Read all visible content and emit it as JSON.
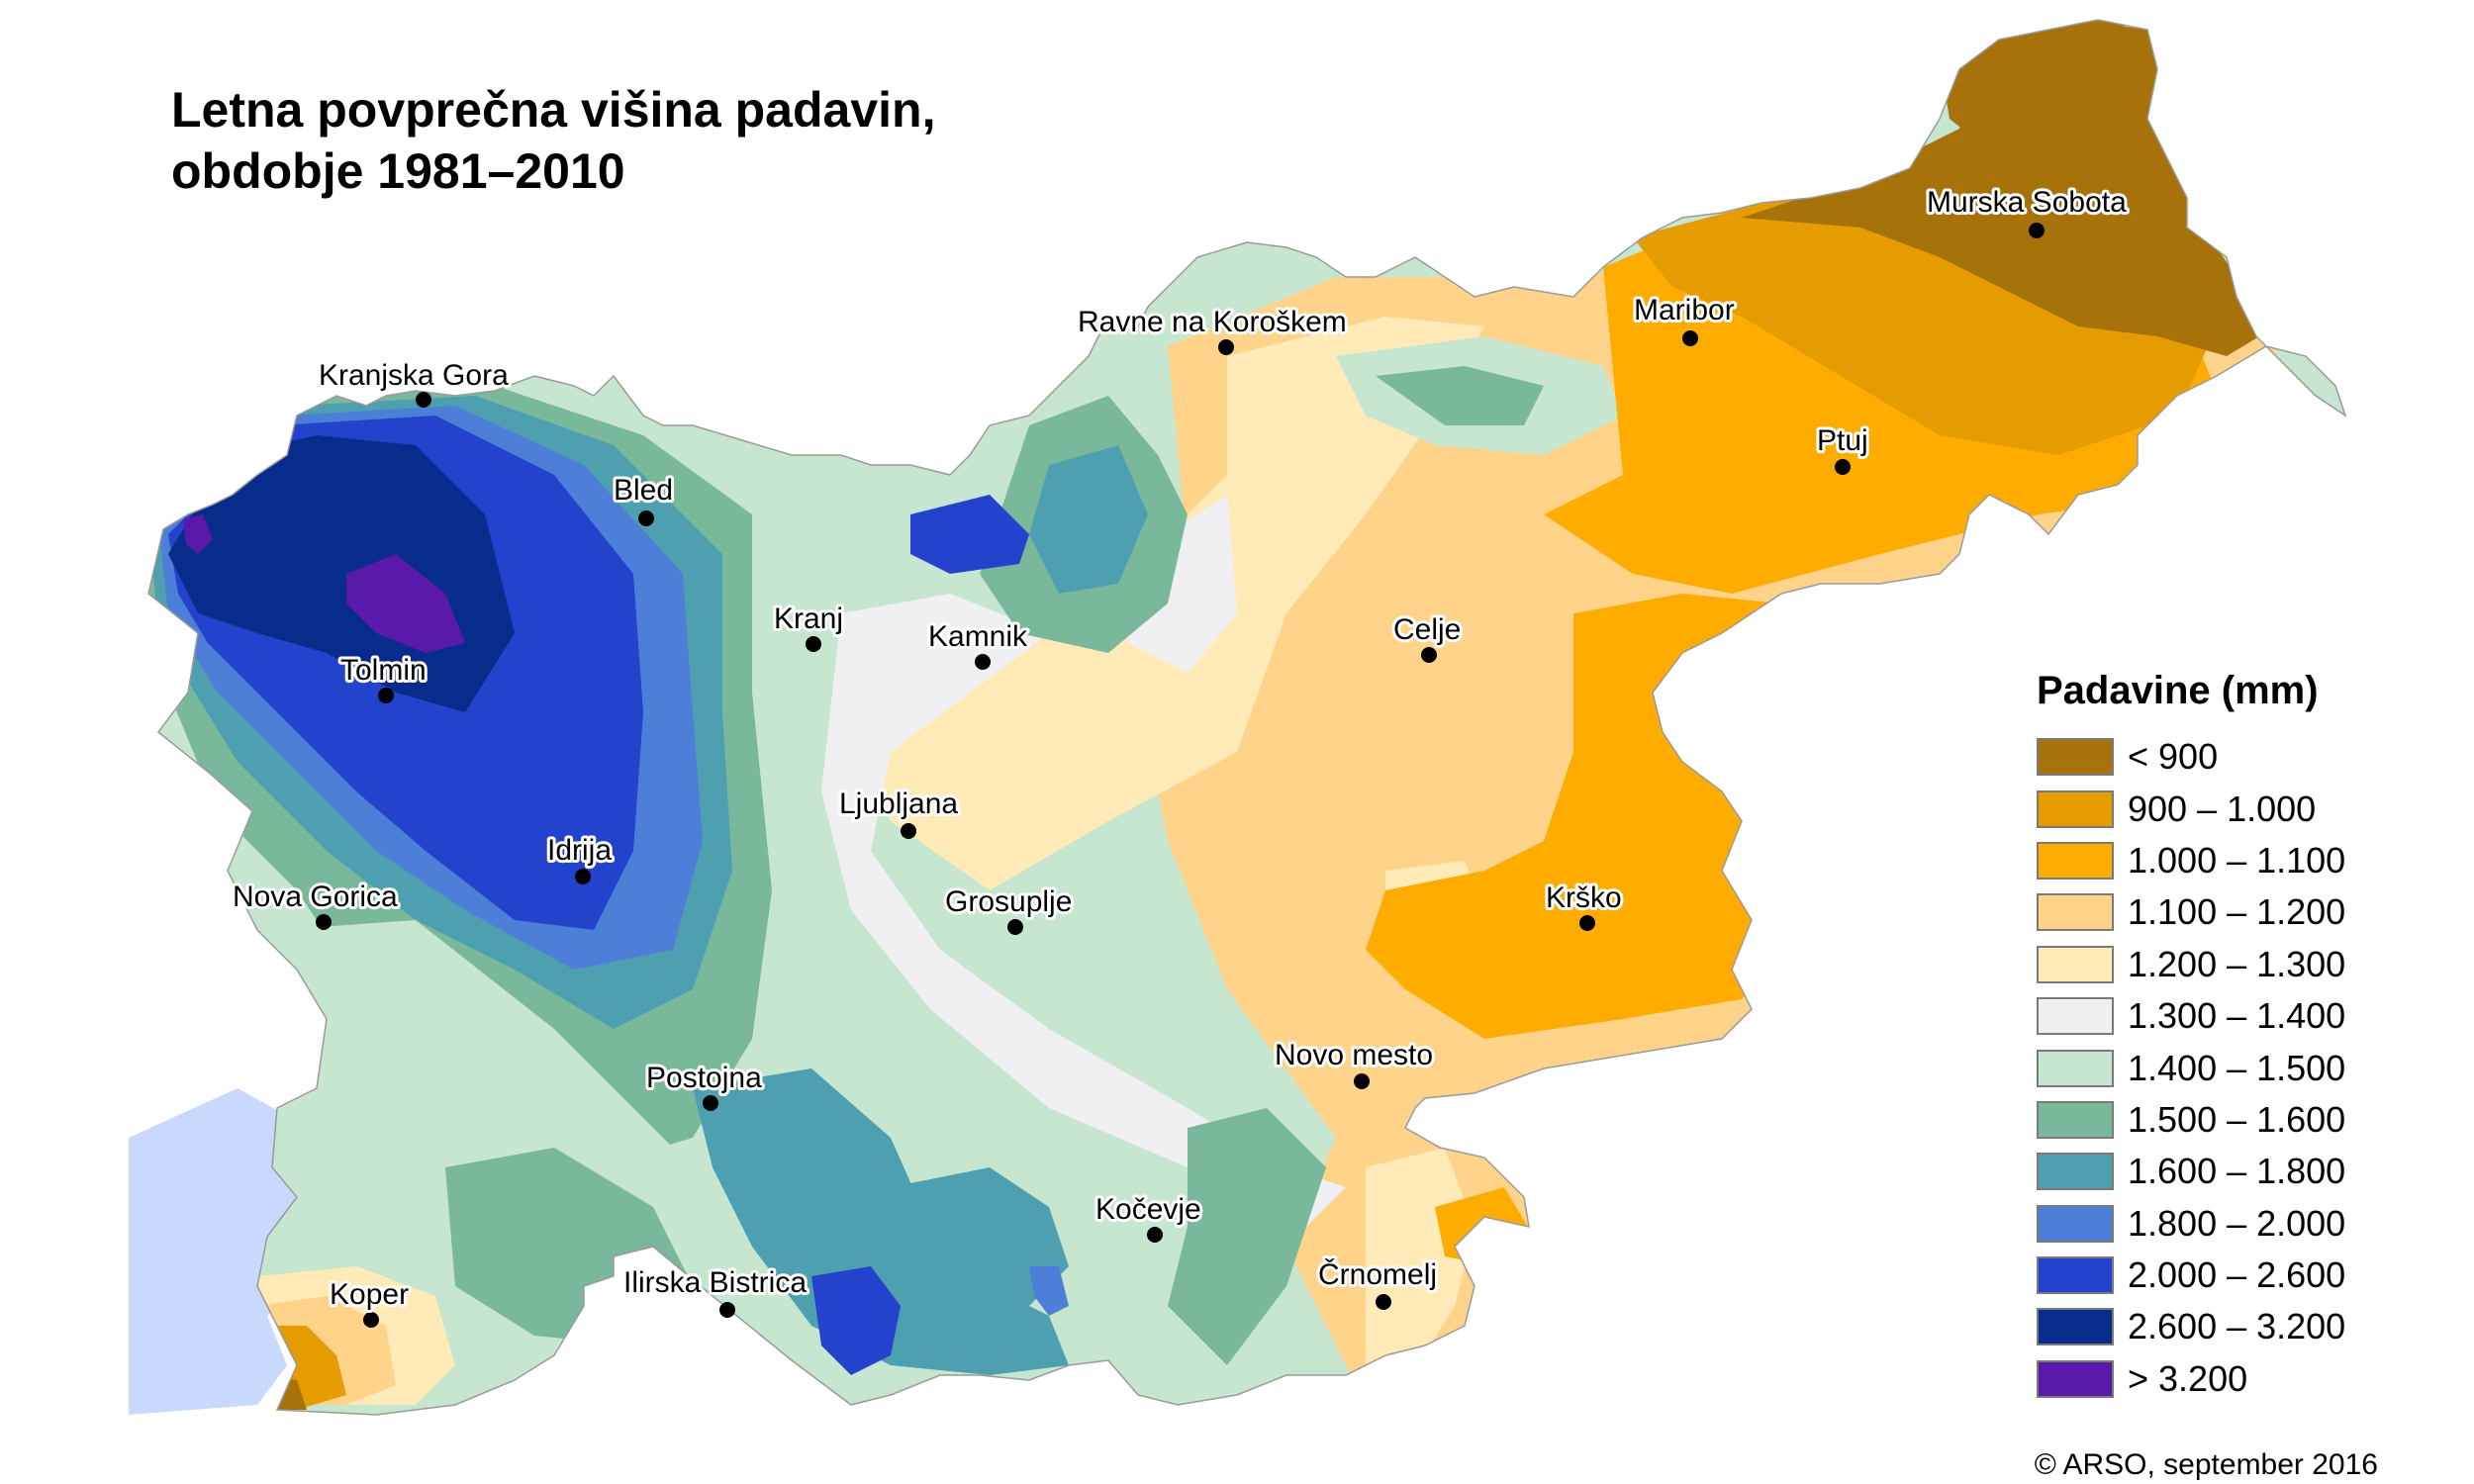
{
  "title": {
    "line1": "Letna povprečna višina padavin,",
    "line2": "obdobje 1981–2010"
  },
  "legend": {
    "title": "Padavine (mm)",
    "classes": [
      {
        "label": "< 900",
        "color": "#a8720a"
      },
      {
        "label": "900 – 1.000",
        "color": "#e59c00"
      },
      {
        "label": "1.000 – 1.100",
        "color": "#ffac00"
      },
      {
        "label": "1.100 – 1.200",
        "color": "#ffd38a"
      },
      {
        "label": "1.200 – 1.300",
        "color": "#ffeab8"
      },
      {
        "label": "1.300 – 1.400",
        "color": "#f0f0f3"
      },
      {
        "label": "1.400 – 1.500",
        "color": "#c6e6cf"
      },
      {
        "label": "1.500 – 1.600",
        "color": "#79b89b"
      },
      {
        "label": "1.600 – 1.800",
        "color": "#4e9fb0"
      },
      {
        "label": "1.800 – 2.000",
        "color": "#4d7fd8"
      },
      {
        "label": "2.000 – 2.600",
        "color": "#2443cc"
      },
      {
        "label": "2.600 – 3.200",
        "color": "#082c8c"
      },
      {
        "label": "> 3.200",
        "color": "#5a19a8"
      }
    ]
  },
  "sea_color": "#c8d8ff",
  "cities": [
    {
      "name": "Murska Sobota"
    },
    {
      "name": "Maribor"
    },
    {
      "name": "Ravne na Koroškem"
    },
    {
      "name": "Ptuj"
    },
    {
      "name": "Kranjska Gora"
    },
    {
      "name": "Bled"
    },
    {
      "name": "Kranj"
    },
    {
      "name": "Kamnik"
    },
    {
      "name": "Celje"
    },
    {
      "name": "Tolmin"
    },
    {
      "name": "Ljubljana"
    },
    {
      "name": "Idrija"
    },
    {
      "name": "Nova Gorica"
    },
    {
      "name": "Grosuplje"
    },
    {
      "name": "Krško"
    },
    {
      "name": "Novo mesto"
    },
    {
      "name": "Postojna"
    },
    {
      "name": "Kočevje"
    },
    {
      "name": "Črnomelj"
    },
    {
      "name": "Koper"
    },
    {
      "name": "Ilirska Bistrica"
    }
  ],
  "credit": "© ARSO, september 2016"
}
